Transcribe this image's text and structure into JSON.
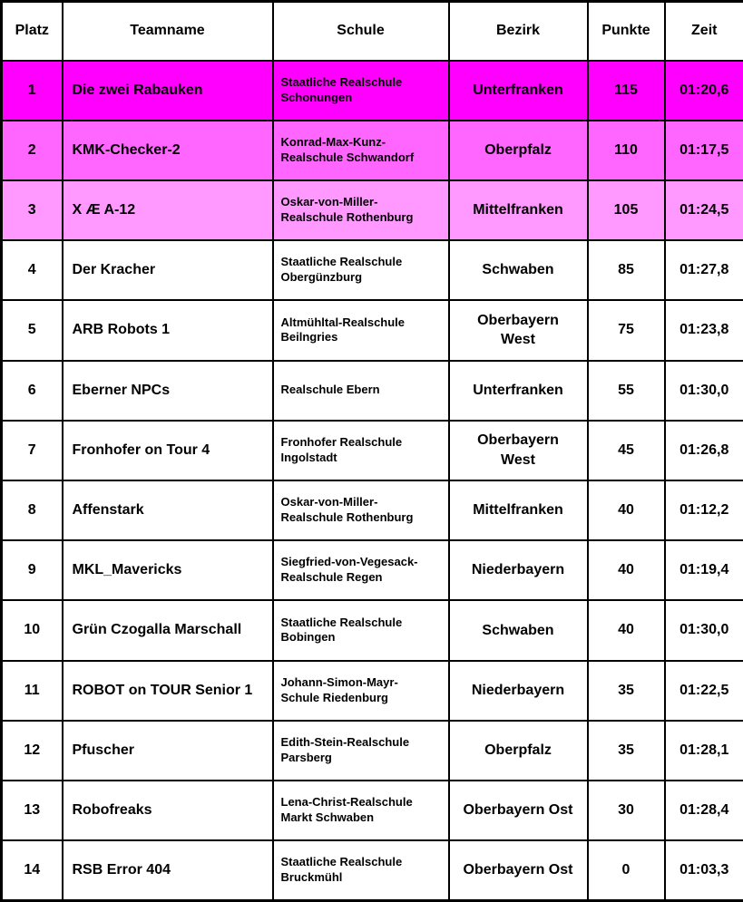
{
  "table": {
    "columns": [
      "Platz",
      "Teamname",
      "Schule",
      "Bezirk",
      "Punkte",
      "Zeit"
    ],
    "rows": [
      {
        "platz": "1",
        "teamname": "Die zwei Rabauken",
        "schule": "Staatliche Realschule\nSchonungen",
        "bezirk": "Unterfranken",
        "punkte": "115",
        "zeit": "01:20,6",
        "bg": "#FF00FF"
      },
      {
        "platz": "2",
        "teamname": "KMK-Checker-2",
        "schule": "Konrad-Max-Kunz-\nRealschule Schwandorf",
        "bezirk": "Oberpfalz",
        "punkte": "110",
        "zeit": "01:17,5",
        "bg": "#FF66FF"
      },
      {
        "platz": "3",
        "teamname": "X Æ A-12",
        "schule": "Oskar-von-Miller-\nRealschule Rothenburg",
        "bezirk": "Mittelfranken",
        "punkte": "105",
        "zeit": "01:24,5",
        "bg": "#FF99FF"
      },
      {
        "platz": "4",
        "teamname": "Der Kracher",
        "schule": "Staatliche Realschule\nObergünzburg",
        "bezirk": "Schwaben",
        "punkte": "85",
        "zeit": "01:27,8",
        "bg": "#FFFFFF"
      },
      {
        "platz": "5",
        "teamname": "ARB Robots 1",
        "schule": "Altmühltal-Realschule\nBeilngries",
        "bezirk": "Oberbayern\nWest",
        "punkte": "75",
        "zeit": "01:23,8",
        "bg": "#FFFFFF"
      },
      {
        "platz": "6",
        "teamname": "Eberner NPCs",
        "schule": "Realschule Ebern",
        "bezirk": "Unterfranken",
        "punkte": "55",
        "zeit": "01:30,0",
        "bg": "#FFFFFF"
      },
      {
        "platz": "7",
        "teamname": "Fronhofer on Tour 4",
        "schule": "Fronhofer Realschule\nIngolstadt",
        "bezirk": "Oberbayern\nWest",
        "punkte": "45",
        "zeit": "01:26,8",
        "bg": "#FFFFFF"
      },
      {
        "platz": "8",
        "teamname": "Affenstark",
        "schule": "Oskar-von-Miller-\nRealschule Rothenburg",
        "bezirk": "Mittelfranken",
        "punkte": "40",
        "zeit": "01:12,2",
        "bg": "#FFFFFF"
      },
      {
        "platz": "9",
        "teamname": "MKL_Mavericks",
        "schule": "Siegfried-von-Vegesack-\nRealschule Regen",
        "bezirk": "Niederbayern",
        "punkte": "40",
        "zeit": "01:19,4",
        "bg": "#FFFFFF"
      },
      {
        "platz": "10",
        "teamname": "Grün Czogalla Marschall",
        "schule": "Staatliche Realschule\nBobingen",
        "bezirk": "Schwaben",
        "punkte": "40",
        "zeit": "01:30,0",
        "bg": "#FFFFFF"
      },
      {
        "platz": "11",
        "teamname": "ROBOT on TOUR Senior 1",
        "schule": "Johann-Simon-Mayr-\nSchule Riedenburg",
        "bezirk": "Niederbayern",
        "punkte": "35",
        "zeit": "01:22,5",
        "bg": "#FFFFFF"
      },
      {
        "platz": "12",
        "teamname": "Pfuscher",
        "schule": "Edith-Stein-Realschule\nParsberg",
        "bezirk": "Oberpfalz",
        "punkte": "35",
        "zeit": "01:28,1",
        "bg": "#FFFFFF"
      },
      {
        "platz": "13",
        "teamname": "Robofreaks",
        "schule": "Lena-Christ-Realschule\nMarkt Schwaben",
        "bezirk": "Oberbayern Ost",
        "punkte": "30",
        "zeit": "01:28,4",
        "bg": "#FFFFFF"
      },
      {
        "platz": "14",
        "teamname": "RSB Error 404",
        "schule": "Staatliche Realschule\nBruckmühl",
        "bezirk": "Oberbayern Ost",
        "punkte": "0",
        "zeit": "01:03,3",
        "bg": "#FFFFFF"
      }
    ]
  },
  "colors": {
    "rank1_highlight": "#FF00FF",
    "rank2_highlight": "#FF66FF",
    "rank3_highlight": "#FF99FF",
    "row_default": "#FFFFFF",
    "border": "#000000",
    "text": "#000000"
  }
}
